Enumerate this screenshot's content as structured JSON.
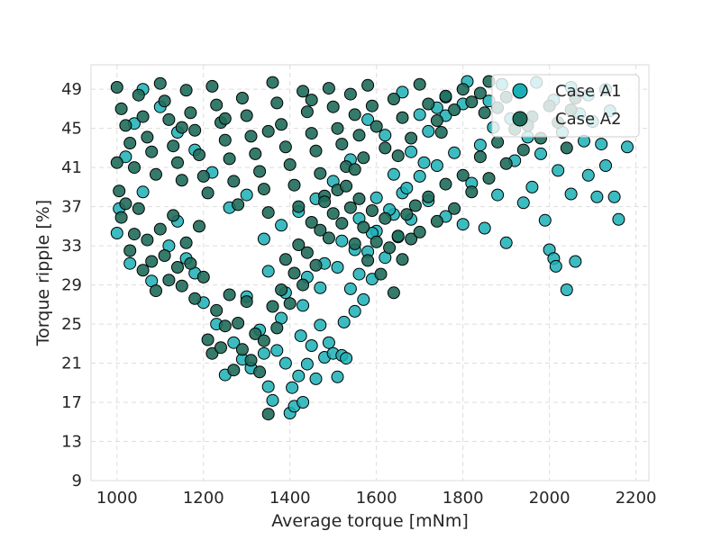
{
  "chart_data": {
    "type": "scatter",
    "title": "",
    "xlabel": "Average torque [mNm]",
    "ylabel": "Torque ripple [%]",
    "xlim": [
      940,
      2230
    ],
    "ylim": [
      9,
      51.5
    ],
    "xticks": [
      1000,
      1200,
      1400,
      1600,
      1800,
      2000,
      2200
    ],
    "yticks": [
      9,
      13,
      17,
      21,
      25,
      29,
      33,
      37,
      41,
      45,
      49
    ],
    "grid": true,
    "legend_position": "top-right",
    "colors": {
      "Case A1": "#1ab0b6",
      "Case A2": "#1f6b5a",
      "edge": "#000000"
    },
    "series": [
      {
        "name": "Case A1",
        "points": [
          [
            1000,
            34.3
          ],
          [
            1005,
            36.8
          ],
          [
            1030,
            31.2
          ],
          [
            1060,
            38.5
          ],
          [
            1080,
            29.4
          ],
          [
            1120,
            33.0
          ],
          [
            1140,
            35.5
          ],
          [
            1160,
            31.7
          ],
          [
            1180,
            30.2
          ],
          [
            1200,
            27.2
          ],
          [
            1230,
            25.0
          ],
          [
            1250,
            19.8
          ],
          [
            1270,
            23.1
          ],
          [
            1290,
            21.4
          ],
          [
            1300,
            27.8
          ],
          [
            1310,
            20.5
          ],
          [
            1330,
            24.4
          ],
          [
            1340,
            22.0
          ],
          [
            1350,
            18.6
          ],
          [
            1360,
            17.2
          ],
          [
            1370,
            22.3
          ],
          [
            1380,
            25.6
          ],
          [
            1390,
            21.0
          ],
          [
            1400,
            15.9
          ],
          [
            1405,
            18.5
          ],
          [
            1410,
            16.6
          ],
          [
            1420,
            19.7
          ],
          [
            1425,
            23.8
          ],
          [
            1430,
            17.0
          ],
          [
            1440,
            20.9
          ],
          [
            1450,
            22.8
          ],
          [
            1460,
            19.4
          ],
          [
            1470,
            24.9
          ],
          [
            1480,
            21.6
          ],
          [
            1490,
            23.1
          ],
          [
            1500,
            22.0
          ],
          [
            1510,
            19.6
          ],
          [
            1520,
            21.8
          ],
          [
            1525,
            25.2
          ],
          [
            1530,
            21.5
          ],
          [
            1540,
            28.6
          ],
          [
            1550,
            26.3
          ],
          [
            1560,
            30.1
          ],
          [
            1570,
            27.5
          ],
          [
            1580,
            32.4
          ],
          [
            1590,
            29.6
          ],
          [
            1600,
            34.5
          ],
          [
            1620,
            31.8
          ],
          [
            1640,
            36.2
          ],
          [
            1650,
            33.9
          ],
          [
            1660,
            38.4
          ],
          [
            1680,
            35.7
          ],
          [
            1700,
            40.1
          ],
          [
            1720,
            37.6
          ],
          [
            1740,
            41.2
          ],
          [
            1760,
            36.0
          ],
          [
            1780,
            42.5
          ],
          [
            1800,
            35.2
          ],
          [
            1820,
            39.4
          ],
          [
            1840,
            43.3
          ],
          [
            1850,
            34.8
          ],
          [
            1870,
            45.1
          ],
          [
            1880,
            38.2
          ],
          [
            1900,
            33.3
          ],
          [
            1910,
            46.0
          ],
          [
            1920,
            41.7
          ],
          [
            1940,
            37.4
          ],
          [
            1950,
            44.1
          ],
          [
            1960,
            39.0
          ],
          [
            1980,
            42.4
          ],
          [
            1990,
            35.6
          ],
          [
            2000,
            32.6
          ],
          [
            2010,
            31.7
          ],
          [
            2015,
            30.9
          ],
          [
            2020,
            40.7
          ],
          [
            2030,
            44.6
          ],
          [
            2040,
            28.5
          ],
          [
            2050,
            38.3
          ],
          [
            2060,
            31.4
          ],
          [
            2070,
            46.5
          ],
          [
            2080,
            43.7
          ],
          [
            2090,
            40.2
          ],
          [
            2100,
            45.7
          ],
          [
            2110,
            38.0
          ],
          [
            2120,
            43.4
          ],
          [
            2130,
            41.2
          ],
          [
            2140,
            46.8
          ],
          [
            2150,
            38.0
          ],
          [
            2160,
            35.7
          ],
          [
            2180,
            43.1
          ],
          [
            1860,
            47.8
          ],
          [
            1890,
            49.5
          ],
          [
            1930,
            48.6
          ],
          [
            1970,
            49.7
          ],
          [
            2010,
            47.9
          ],
          [
            2050,
            49.2
          ],
          [
            2090,
            48.4
          ],
          [
            2130,
            49.0
          ],
          [
            1760,
            48.2
          ],
          [
            1810,
            49.8
          ],
          [
            1700,
            46.4
          ],
          [
            1740,
            47.1
          ],
          [
            1660,
            48.7
          ],
          [
            1620,
            44.3
          ],
          [
            1580,
            45.9
          ],
          [
            1540,
            41.8
          ],
          [
            1500,
            39.6
          ],
          [
            1460,
            37.8
          ],
          [
            1420,
            36.5
          ],
          [
            1380,
            35.1
          ],
          [
            1340,
            33.7
          ],
          [
            1300,
            38.2
          ],
          [
            1260,
            36.9
          ],
          [
            1220,
            40.5
          ],
          [
            1180,
            42.8
          ],
          [
            1140,
            44.6
          ],
          [
            1100,
            47.2
          ],
          [
            1060,
            49.0
          ],
          [
            1040,
            45.5
          ],
          [
            1020,
            42.1
          ],
          [
            1440,
            29.8
          ],
          [
            1480,
            31.2
          ],
          [
            1520,
            33.5
          ],
          [
            1560,
            35.8
          ],
          [
            1600,
            37.9
          ],
          [
            1640,
            40.3
          ],
          [
            1680,
            42.6
          ],
          [
            1720,
            44.7
          ],
          [
            1760,
            46.3
          ],
          [
            1800,
            47.5
          ],
          [
            1350,
            30.4
          ],
          [
            1390,
            28.2
          ],
          [
            1430,
            26.9
          ],
          [
            1470,
            28.7
          ],
          [
            1510,
            30.8
          ],
          [
            1550,
            32.6
          ],
          [
            1590,
            34.3
          ],
          [
            1630,
            36.7
          ],
          [
            1670,
            38.9
          ],
          [
            1710,
            41.5
          ]
        ]
      },
      {
        "name": "Case A2",
        "points": [
          [
            1000,
            49.2
          ],
          [
            1010,
            47.0
          ],
          [
            1020,
            45.3
          ],
          [
            1030,
            43.5
          ],
          [
            1040,
            41.0
          ],
          [
            1050,
            48.4
          ],
          [
            1060,
            46.2
          ],
          [
            1070,
            44.1
          ],
          [
            1080,
            42.6
          ],
          [
            1090,
            40.3
          ],
          [
            1100,
            49.6
          ],
          [
            1110,
            47.8
          ],
          [
            1120,
            45.9
          ],
          [
            1130,
            43.2
          ],
          [
            1140,
            41.5
          ],
          [
            1150,
            39.7
          ],
          [
            1160,
            48.9
          ],
          [
            1170,
            46.6
          ],
          [
            1180,
            44.8
          ],
          [
            1190,
            42.3
          ],
          [
            1200,
            40.1
          ],
          [
            1210,
            38.4
          ],
          [
            1220,
            49.3
          ],
          [
            1230,
            47.4
          ],
          [
            1240,
            45.6
          ],
          [
            1250,
            43.8
          ],
          [
            1260,
            41.9
          ],
          [
            1270,
            39.6
          ],
          [
            1280,
            37.2
          ],
          [
            1290,
            48.1
          ],
          [
            1300,
            46.3
          ],
          [
            1310,
            44.2
          ],
          [
            1320,
            42.4
          ],
          [
            1330,
            40.6
          ],
          [
            1340,
            38.8
          ],
          [
            1350,
            36.4
          ],
          [
            1360,
            49.7
          ],
          [
            1370,
            47.6
          ],
          [
            1380,
            45.4
          ],
          [
            1390,
            43.1
          ],
          [
            1400,
            41.3
          ],
          [
            1410,
            39.2
          ],
          [
            1420,
            37.0
          ],
          [
            1430,
            48.8
          ],
          [
            1440,
            46.7
          ],
          [
            1450,
            44.5
          ],
          [
            1460,
            42.7
          ],
          [
            1470,
            40.4
          ],
          [
            1480,
            38.1
          ],
          [
            1490,
            49.1
          ],
          [
            1500,
            47.2
          ],
          [
            1510,
            45.0
          ],
          [
            1520,
            43.4
          ],
          [
            1530,
            41.1
          ],
          [
            1540,
            48.5
          ],
          [
            1550,
            46.4
          ],
          [
            1560,
            44.3
          ],
          [
            1570,
            42.0
          ],
          [
            1580,
            49.4
          ],
          [
            1590,
            47.3
          ],
          [
            1600,
            45.2
          ],
          [
            1620,
            43.0
          ],
          [
            1640,
            48.0
          ],
          [
            1660,
            46.1
          ],
          [
            1680,
            44.0
          ],
          [
            1700,
            49.5
          ],
          [
            1720,
            47.5
          ],
          [
            1740,
            45.8
          ],
          [
            1760,
            48.3
          ],
          [
            1780,
            46.9
          ],
          [
            1800,
            49.0
          ],
          [
            1820,
            47.7
          ],
          [
            1840,
            48.6
          ],
          [
            1860,
            49.8
          ],
          [
            1880,
            47.1
          ],
          [
            1900,
            48.2
          ],
          [
            1000,
            41.5
          ],
          [
            1005,
            38.6
          ],
          [
            1010,
            35.9
          ],
          [
            1020,
            37.3
          ],
          [
            1030,
            32.5
          ],
          [
            1040,
            34.2
          ],
          [
            1050,
            36.8
          ],
          [
            1060,
            30.5
          ],
          [
            1070,
            33.6
          ],
          [
            1080,
            31.4
          ],
          [
            1090,
            28.4
          ],
          [
            1100,
            34.7
          ],
          [
            1110,
            32.0
          ],
          [
            1120,
            29.5
          ],
          [
            1130,
            36.1
          ],
          [
            1140,
            30.8
          ],
          [
            1150,
            28.9
          ],
          [
            1160,
            33.3
          ],
          [
            1170,
            31.2
          ],
          [
            1180,
            27.6
          ],
          [
            1190,
            35.0
          ],
          [
            1200,
            29.8
          ],
          [
            1210,
            23.4
          ],
          [
            1220,
            22.0
          ],
          [
            1230,
            26.4
          ],
          [
            1240,
            22.6
          ],
          [
            1250,
            24.8
          ],
          [
            1260,
            28.0
          ],
          [
            1270,
            20.3
          ],
          [
            1280,
            25.1
          ],
          [
            1290,
            22.4
          ],
          [
            1300,
            27.3
          ],
          [
            1310,
            21.3
          ],
          [
            1320,
            24.0
          ],
          [
            1330,
            20.1
          ],
          [
            1340,
            23.3
          ],
          [
            1350,
            15.8
          ],
          [
            1360,
            26.8
          ],
          [
            1370,
            24.6
          ],
          [
            1380,
            28.5
          ],
          [
            1390,
            31.6
          ],
          [
            1400,
            27.1
          ],
          [
            1410,
            30.2
          ],
          [
            1420,
            33.1
          ],
          [
            1430,
            29.0
          ],
          [
            1440,
            32.3
          ],
          [
            1450,
            35.4
          ],
          [
            1460,
            31.0
          ],
          [
            1470,
            34.6
          ],
          [
            1480,
            37.5
          ],
          [
            1490,
            33.8
          ],
          [
            1500,
            36.3
          ],
          [
            1510,
            38.7
          ],
          [
            1520,
            35.3
          ],
          [
            1530,
            39.1
          ],
          [
            1540,
            36.9
          ],
          [
            1550,
            33.2
          ],
          [
            1560,
            37.8
          ],
          [
            1570,
            34.9
          ],
          [
            1580,
            31.5
          ],
          [
            1590,
            36.6
          ],
          [
            1600,
            33.4
          ],
          [
            1610,
            30.1
          ],
          [
            1620,
            35.8
          ],
          [
            1630,
            32.8
          ],
          [
            1640,
            28.2
          ],
          [
            1650,
            34.0
          ],
          [
            1660,
            31.6
          ],
          [
            1670,
            36.2
          ],
          [
            1680,
            33.7
          ],
          [
            1690,
            37.1
          ],
          [
            1700,
            34.4
          ],
          [
            1720,
            38.0
          ],
          [
            1740,
            35.5
          ],
          [
            1760,
            39.3
          ],
          [
            1780,
            36.8
          ],
          [
            1800,
            40.2
          ],
          [
            1820,
            38.5
          ],
          [
            1840,
            42.1
          ],
          [
            1860,
            39.9
          ],
          [
            1880,
            43.6
          ],
          [
            1900,
            41.4
          ],
          [
            1920,
            44.9
          ],
          [
            1940,
            42.8
          ],
          [
            1960,
            46.2
          ],
          [
            1980,
            44.0
          ],
          [
            2000,
            47.3
          ],
          [
            2020,
            45.6
          ],
          [
            2040,
            43.0
          ],
          [
            2060,
            48.1
          ],
          [
            1150,
            45.1
          ],
          [
            1250,
            46.0
          ],
          [
            1350,
            44.7
          ],
          [
            1450,
            47.9
          ],
          [
            1550,
            40.8
          ],
          [
            1650,
            42.2
          ],
          [
            1750,
            44.6
          ],
          [
            1850,
            46.6
          ],
          [
            1950,
            45.3
          ],
          [
            2050,
            46.9
          ]
        ]
      }
    ]
  }
}
